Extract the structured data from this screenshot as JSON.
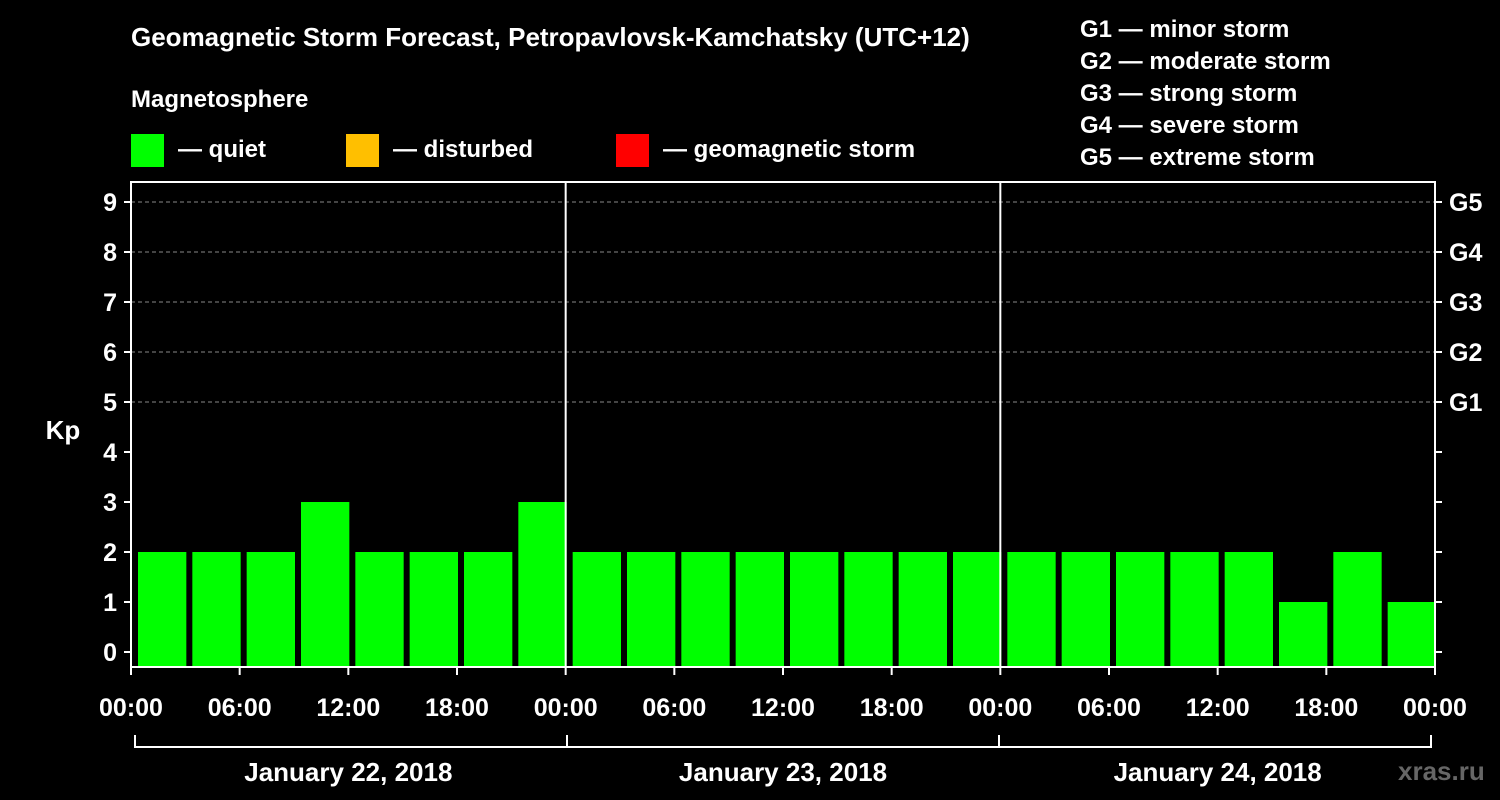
{
  "title": "Geomagnetic Storm Forecast, Petropavlovsk-Kamchatsky (UTC+12)",
  "magnetosphere_label": "Magnetosphere",
  "legend": [
    {
      "label": "— quiet",
      "color": "#00ff00"
    },
    {
      "label": "— disturbed",
      "color": "#ffbf00"
    },
    {
      "label": "— geomagnetic storm",
      "color": "#ff0000"
    }
  ],
  "g_legend": [
    "G1 — minor storm",
    "G2 — moderate storm",
    "G3 — strong storm",
    "G4 — severe storm",
    "G5 — extreme storm"
  ],
  "watermark": "xras.ru",
  "chart_data": {
    "type": "bar",
    "ylabel": "Kp",
    "ylim": [
      0,
      9
    ],
    "yticks": [
      0,
      1,
      2,
      3,
      4,
      5,
      6,
      7,
      8,
      9
    ],
    "right_axis_labels": [
      {
        "kp": 5,
        "label": "G1"
      },
      {
        "kp": 6,
        "label": "G2"
      },
      {
        "kp": 7,
        "label": "G3"
      },
      {
        "kp": 8,
        "label": "G4"
      },
      {
        "kp": 9,
        "label": "G5"
      }
    ],
    "grid_kp": [
      5,
      6,
      7,
      8,
      9
    ],
    "bar_color": "#00ff00",
    "xtick_labels": [
      "00:00",
      "06:00",
      "12:00",
      "18:00",
      "00:00",
      "06:00",
      "12:00",
      "18:00",
      "00:00",
      "06:00",
      "12:00",
      "18:00",
      "00:00"
    ],
    "days": [
      "January 22, 2018",
      "January 23, 2018",
      "January 24, 2018"
    ],
    "values": [
      2,
      2,
      2,
      3,
      2,
      2,
      2,
      3,
      2,
      2,
      2,
      2,
      2,
      2,
      2,
      2,
      2,
      2,
      2,
      2,
      2,
      1,
      2,
      1
    ]
  }
}
